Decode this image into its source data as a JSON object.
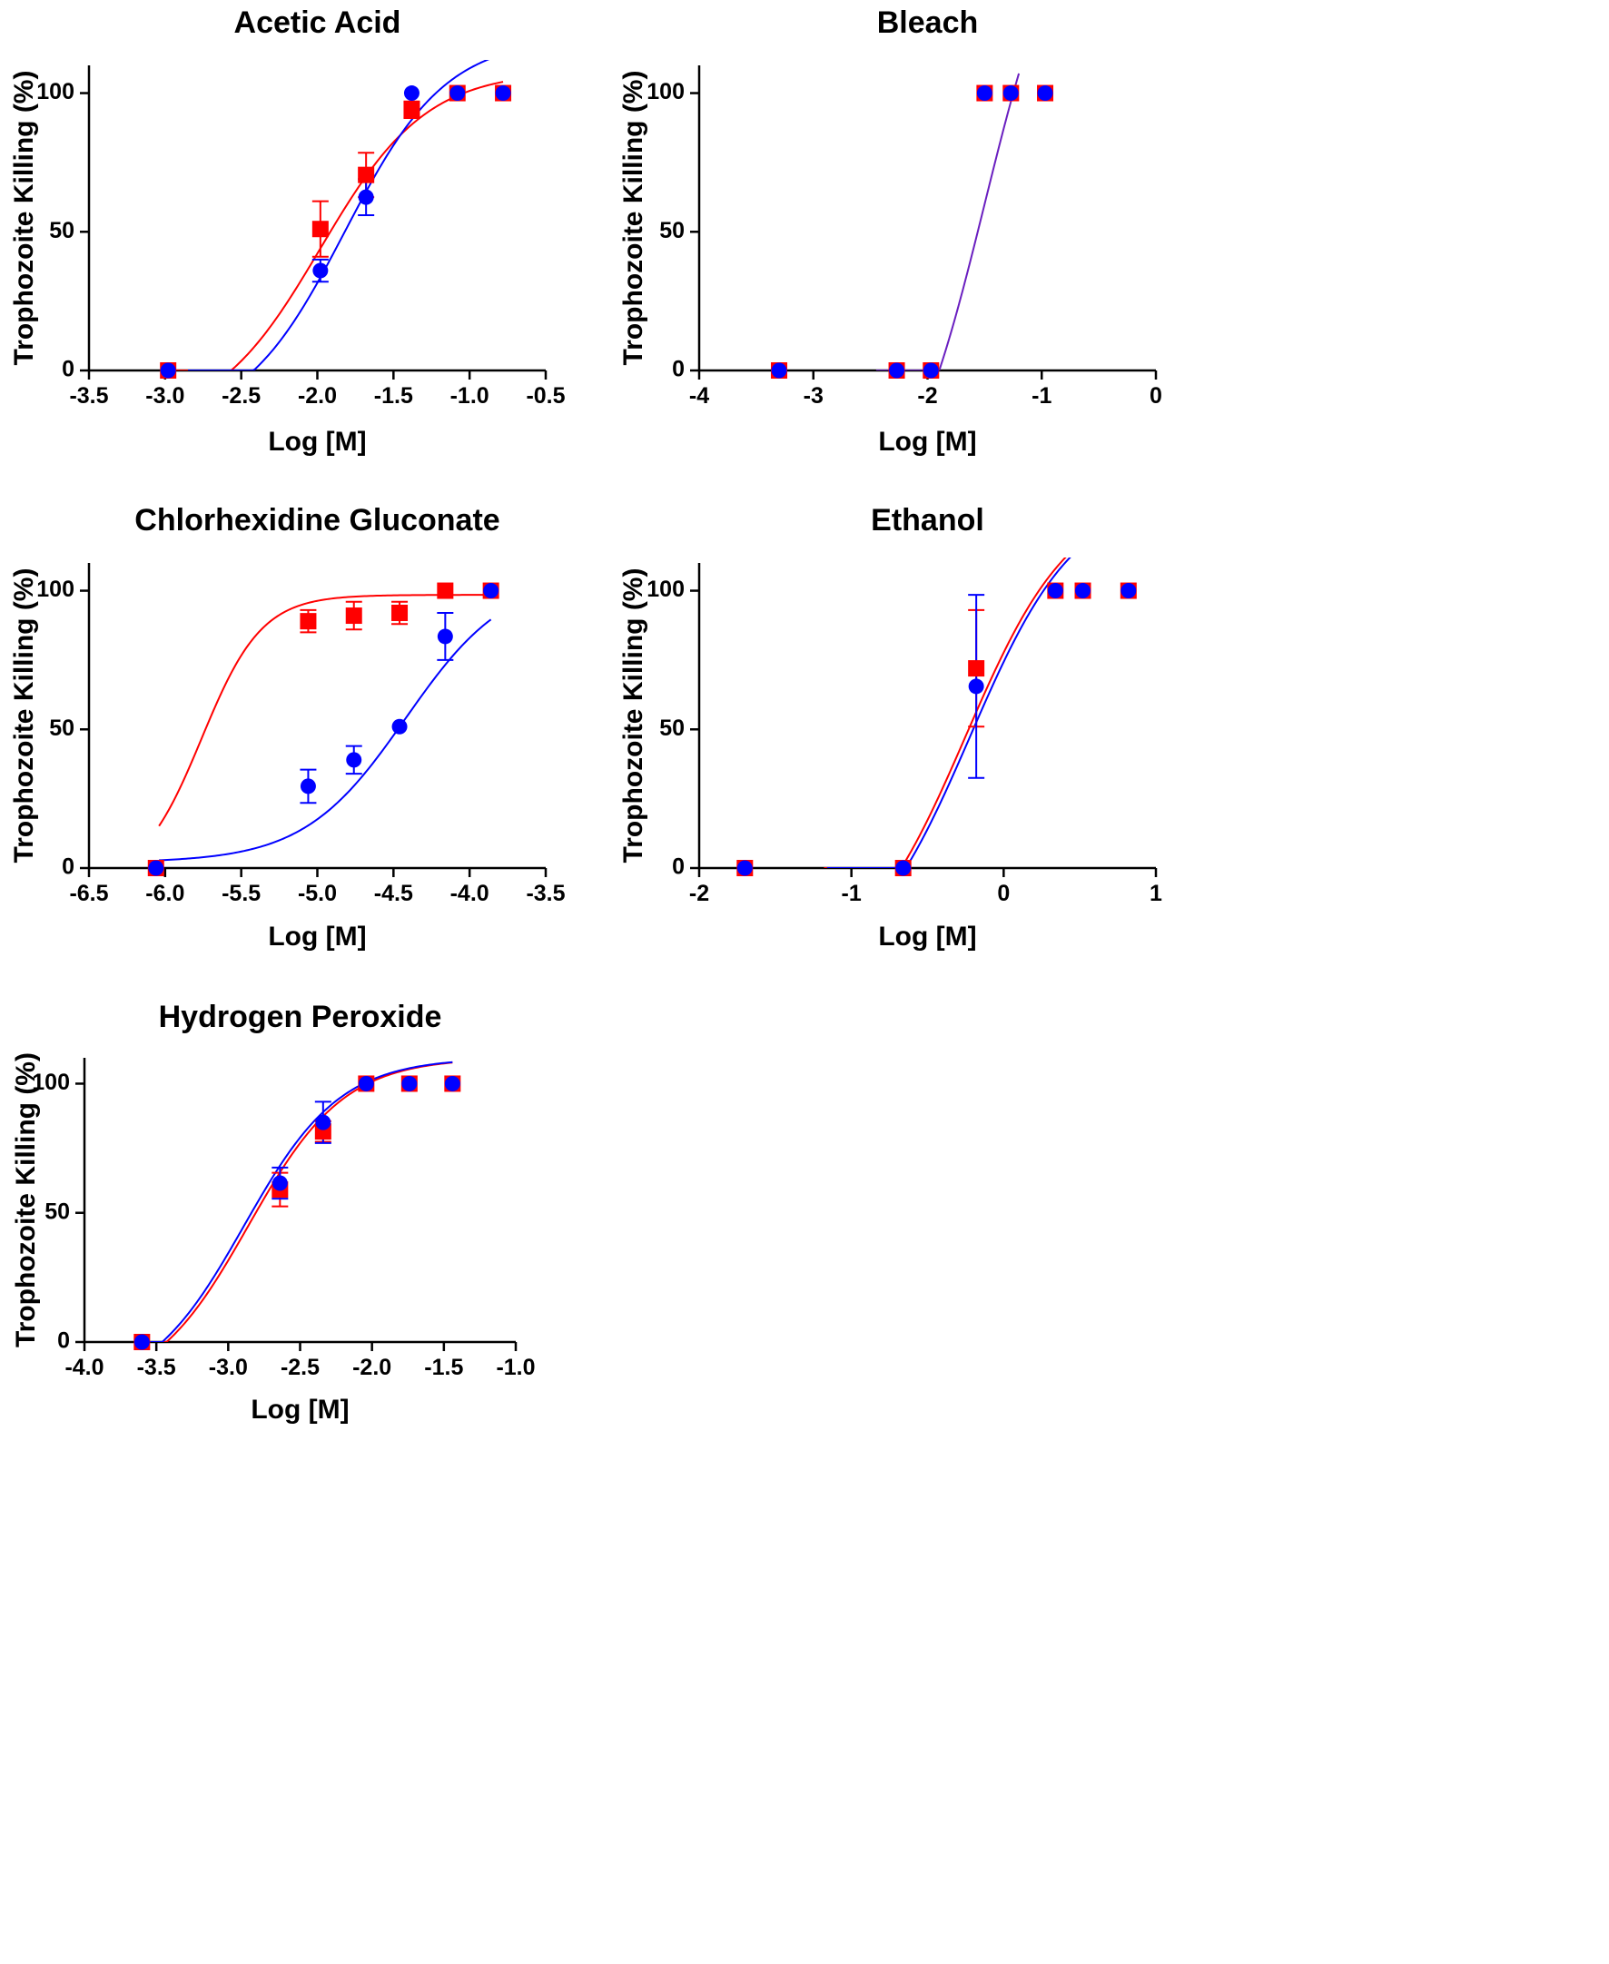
{
  "colors": {
    "red": "#ff0000",
    "blue": "#0000ff",
    "bleach_curve": "#6a1fc0",
    "axis": "#000000"
  },
  "chart_data": [
    {
      "type": "scatter",
      "title": "Acetic Acid",
      "xlabel": "Log [M]",
      "ylabel": "Trophozoite Killing (%)",
      "xlim": [
        -3.5,
        -0.5
      ],
      "ylim": [
        0,
        110
      ],
      "xticks": [
        -3.5,
        -3.0,
        -2.5,
        -2.0,
        -1.5,
        -1.0,
        -0.5
      ],
      "xtick_labels": [
        "-3.5",
        "-3.0",
        "-2.5",
        "-2.0",
        "-1.5",
        "-1.0",
        "-0.5"
      ],
      "yticks": [
        0,
        50,
        100
      ],
      "ytick_labels": [
        "0",
        "50",
        "100"
      ],
      "series": [
        {
          "name": "red",
          "marker": "square",
          "color": "#ff0000",
          "x": [
            -2.98,
            -1.98,
            -1.68,
            -1.38,
            -1.08,
            -0.78
          ],
          "y": [
            0,
            51,
            70.5,
            94,
            100,
            100
          ],
          "err": [
            0,
            10,
            8,
            3,
            0,
            0
          ],
          "curve": {
            "bottom": -20,
            "top": 108,
            "logec50": -1.98,
            "hill": 1.25,
            "xmin": -2.98,
            "xmax": -0.78
          }
        },
        {
          "name": "blue",
          "marker": "circle",
          "color": "#0000ff",
          "x": [
            -2.98,
            -1.98,
            -1.68,
            -1.38,
            -1.08,
            -0.78
          ],
          "y": [
            0,
            36,
            62.5,
            100,
            100,
            100
          ],
          "err": [
            0,
            4,
            6.5,
            0,
            0,
            0
          ],
          "curve": {
            "bottom": -20,
            "top": 120,
            "logec50": -1.82,
            "hill": 1.3,
            "xmin": -2.85,
            "xmax": -0.78
          }
        }
      ]
    },
    {
      "type": "scatter",
      "title": "Bleach",
      "xlabel": "Log [M]",
      "ylabel": "Trophozoite Killing (%)",
      "xlim": [
        -4,
        0
      ],
      "ylim": [
        0,
        110
      ],
      "xticks": [
        -4,
        -3,
        -2,
        -1,
        0
      ],
      "xtick_labels": [
        "-4",
        "-3",
        "-2",
        "-1",
        "0"
      ],
      "yticks": [
        0,
        50,
        100
      ],
      "ytick_labels": [
        "0",
        "50",
        "100"
      ],
      "series": [
        {
          "name": "red",
          "marker": "square",
          "color": "#ff0000",
          "x": [
            -3.3,
            -2.27,
            -1.97,
            -1.5,
            -1.27,
            -0.97
          ],
          "y": [
            0,
            0,
            0,
            100,
            100,
            100
          ],
          "err": [
            0,
            0,
            0,
            0,
            0,
            0
          ]
        },
        {
          "name": "blue",
          "marker": "circle",
          "color": "#0000ff",
          "x": [
            -3.3,
            -2.27,
            -1.97,
            -1.5,
            -1.27,
            -0.97
          ],
          "y": [
            0,
            0,
            0,
            100,
            100,
            100
          ],
          "err": [
            0,
            0,
            0,
            0,
            0,
            0
          ],
          "curve": {
            "bottom": -60,
            "top": 180,
            "logec50": -1.5,
            "hill": 1.2,
            "xmin": -2.45,
            "xmax": -1.2,
            "color": "#6a1fc0"
          }
        }
      ]
    },
    {
      "type": "scatter",
      "title": "Chlorhexidine Gluconate",
      "xlabel": "Log [M]",
      "ylabel": "Trophozoite Killing (%)",
      "xlim": [
        -6.5,
        -3.5
      ],
      "ylim": [
        0,
        110
      ],
      "xticks": [
        -6.5,
        -6.0,
        -5.5,
        -5.0,
        -4.5,
        -4.0,
        -3.5
      ],
      "xtick_labels": [
        "-6.5",
        "-6.0",
        "-5.5",
        "-5.0",
        "-4.5",
        "-4.0",
        "-3.5"
      ],
      "yticks": [
        0,
        50,
        100
      ],
      "ytick_labels": [
        "0",
        "50",
        "100"
      ],
      "series": [
        {
          "name": "red",
          "marker": "square",
          "color": "#ff0000",
          "x": [
            -6.06,
            -5.06,
            -4.76,
            -4.46,
            -4.16,
            -3.86
          ],
          "y": [
            0,
            89,
            91,
            92,
            100,
            100
          ],
          "err": [
            0,
            4,
            5,
            4,
            0,
            0
          ],
          "curve": {
            "bottom": -5,
            "top": 98.5,
            "logec50": -5.76,
            "hill": 2.2,
            "xmin": -6.04,
            "xmax": -3.86
          }
        },
        {
          "name": "blue",
          "marker": "circle",
          "color": "#0000ff",
          "x": [
            -6.06,
            -5.06,
            -4.76,
            -4.46,
            -4.16,
            -3.86
          ],
          "y": [
            0,
            29.5,
            39,
            51,
            83.5,
            100
          ],
          "err": [
            0,
            6,
            5,
            0,
            8.5,
            0
          ],
          "curve": {
            "bottom": 2,
            "top": 106,
            "logec50": -4.42,
            "hill": 1.3,
            "xmin": -6.04,
            "xmax": -3.86
          }
        }
      ]
    },
    {
      "type": "scatter",
      "title": "Ethanol",
      "xlabel": "Log [M]",
      "ylabel": "Trophozoite Killing (%)",
      "xlim": [
        -2,
        1
      ],
      "ylim": [
        0,
        110
      ],
      "xticks": [
        -2,
        -1,
        0,
        1
      ],
      "xtick_labels": [
        "-2",
        "-1",
        "0",
        "1"
      ],
      "yticks": [
        0,
        50,
        100
      ],
      "ytick_labels": [
        "0",
        "50",
        "100"
      ],
      "series": [
        {
          "name": "red",
          "marker": "square",
          "color": "#ff0000",
          "x": [
            -1.7,
            -0.66,
            -0.18,
            0.34,
            0.52,
            0.82
          ],
          "y": [
            0,
            0,
            72,
            100,
            100,
            100
          ],
          "err": [
            0,
            0,
            21,
            0,
            0,
            0
          ],
          "curve": {
            "bottom": -40,
            "top": 135,
            "logec50": -0.25,
            "hill": 1.25,
            "xmin": -1.18,
            "xmax": 0.82
          }
        },
        {
          "name": "blue",
          "marker": "circle",
          "color": "#0000ff",
          "x": [
            -1.7,
            -0.66,
            -0.18,
            0.34,
            0.52,
            0.82
          ],
          "y": [
            0,
            0,
            65.5,
            100,
            100,
            100
          ],
          "err": [
            0,
            0,
            33,
            0,
            0,
            0
          ],
          "curve": {
            "bottom": -40,
            "top": 135,
            "logec50": -0.22,
            "hill": 1.25,
            "xmin": -1.16,
            "xmax": 0.82
          }
        }
      ]
    },
    {
      "type": "scatter",
      "title": "Hydrogen Peroxide",
      "xlabel": "Log [M]",
      "ylabel": "Trophozoite Killing (%)",
      "xlim": [
        -4.0,
        -1.0
      ],
      "ylim": [
        0,
        110
      ],
      "xticks": [
        -4.0,
        -3.5,
        -3.0,
        -2.5,
        -2.0,
        -1.5,
        -1.0
      ],
      "xtick_labels": [
        "-4.0",
        "-3.5",
        "-3.0",
        "-2.5",
        "-2.0",
        "-1.5",
        "-1.0"
      ],
      "yticks": [
        0,
        50,
        100
      ],
      "ytick_labels": [
        "0",
        "50",
        "100"
      ],
      "series": [
        {
          "name": "red",
          "marker": "square",
          "color": "#ff0000",
          "x": [
            -3.6,
            -2.64,
            -2.34,
            -2.04,
            -1.74,
            -1.44
          ],
          "y": [
            0,
            59,
            81.5,
            100,
            100,
            100
          ],
          "err": [
            0,
            6.5,
            4,
            0,
            0,
            0
          ],
          "curve": {
            "bottom": -20,
            "top": 110,
            "logec50": -2.86,
            "hill": 1.3,
            "xmin": -3.56,
            "xmax": -1.44
          }
        },
        {
          "name": "blue",
          "marker": "circle",
          "color": "#0000ff",
          "x": [
            -3.6,
            -2.64,
            -2.34,
            -2.04,
            -1.74,
            -1.44
          ],
          "y": [
            0,
            61.5,
            85,
            100,
            100,
            100
          ],
          "err": [
            0,
            6,
            8,
            0,
            0,
            0
          ],
          "curve": {
            "bottom": -20,
            "top": 110,
            "logec50": -2.89,
            "hill": 1.3,
            "xmin": -3.58,
            "xmax": -1.44
          }
        }
      ]
    }
  ]
}
